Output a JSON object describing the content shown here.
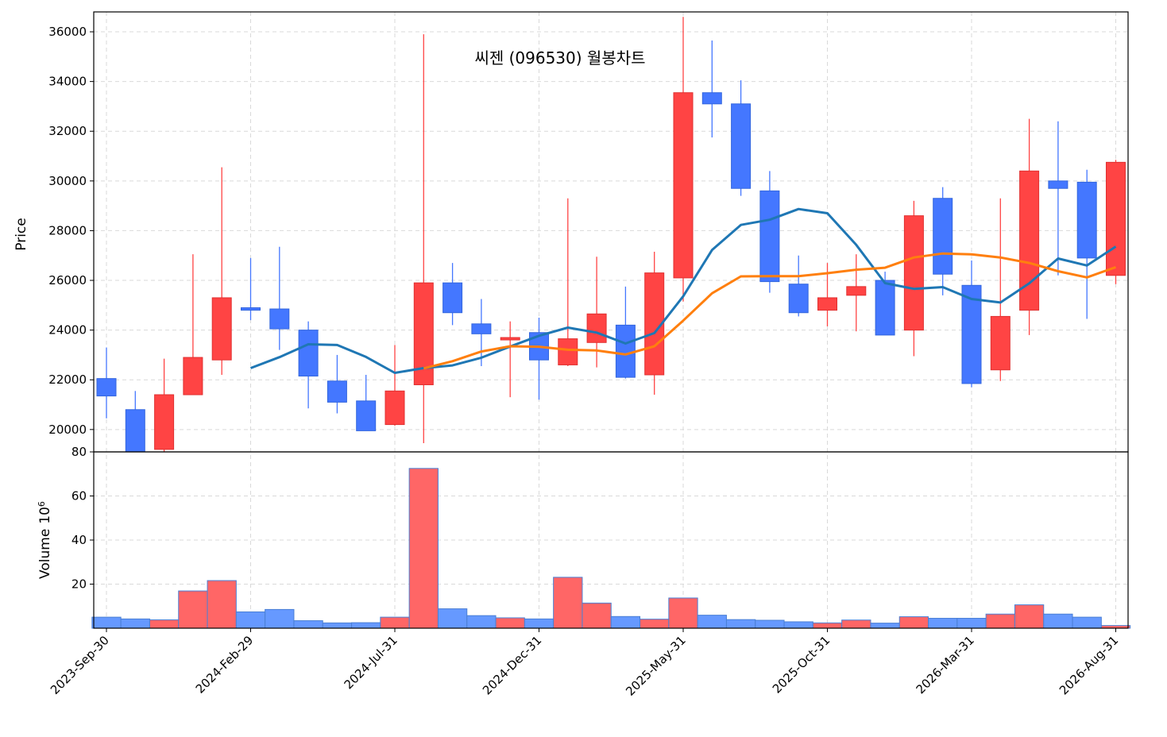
{
  "chart_data": {
    "type": "candlestick",
    "title": "씨젠 (096530) 월봉차트",
    "ylabel": "Price",
    "volume_label": "Volume",
    "volume_exponent": "6",
    "dates": [
      "2023-Sep-30",
      "2023-Oct-31",
      "2023-Nov-30",
      "2023-Dec-31",
      "2024-Jan-31",
      "2024-Feb-29",
      "2024-Mar-31",
      "2024-Apr-30",
      "2024-May-31",
      "2024-Jun-30",
      "2024-Jul-31",
      "2024-Aug-31",
      "2024-Sep-30",
      "2024-Oct-31",
      "2024-Nov-30",
      "2024-Dec-31",
      "2025-Jan-31",
      "2025-Feb-28",
      "2025-Mar-31",
      "2025-Apr-30",
      "2025-May-31",
      "2025-Jun-30",
      "2025-Jul-31",
      "2025-Aug-31",
      "2025-Sep-30",
      "2025-Oct-31",
      "2025-Nov-30",
      "2025-Dec-31",
      "2026-Jan-31",
      "2026-Feb-28",
      "2026-Mar-31",
      "2026-Apr-30",
      "2026-May-31",
      "2026-Jun-30",
      "2026-Jul-31",
      "2026-Aug-31"
    ],
    "open": [
      22050,
      20800,
      19200,
      21400,
      22800,
      24900,
      24850,
      24000,
      21950,
      21150,
      20200,
      21800,
      25900,
      24250,
      23700,
      23900,
      22600,
      23500,
      24200,
      22200,
      26100,
      33550,
      33100,
      29600,
      25850,
      24800,
      25400,
      26000,
      24000,
      29300,
      25800,
      22400,
      24800,
      30000,
      29950,
      26200
    ],
    "high": [
      23300,
      21550,
      22850,
      27050,
      30550,
      26900,
      27350,
      24350,
      23000,
      22200,
      23400,
      35900,
      26700,
      25250,
      24350,
      24500,
      29300,
      26950,
      25750,
      27150,
      36600,
      35650,
      34050,
      30400,
      27000,
      26700,
      27050,
      26350,
      29200,
      29750,
      26800,
      29300,
      32500,
      32400,
      30450,
      30850
    ],
    "low": [
      20450,
      19100,
      19100,
      21400,
      22200,
      24400,
      23200,
      20850,
      20650,
      19950,
      20150,
      19450,
      24200,
      22550,
      21300,
      21200,
      22550,
      22500,
      22050,
      21400,
      25150,
      31750,
      29400,
      25500,
      24550,
      24150,
      23950,
      23800,
      22950,
      25400,
      21700,
      21950,
      23800,
      26200,
      24450,
      25850
    ],
    "close": [
      21350,
      19100,
      21400,
      22900,
      25300,
      24800,
      24050,
      22150,
      21100,
      19950,
      21550,
      25900,
      24700,
      23850,
      23700,
      22800,
      23650,
      24650,
      22100,
      26300,
      33550,
      33100,
      29700,
      25950,
      24700,
      25300,
      25750,
      23800,
      28600,
      26250,
      21850,
      24550,
      30400,
      29700,
      26900,
      30750
    ],
    "volume": [
      5.0,
      4.2,
      3.8,
      16.9,
      21.6,
      7.4,
      8.5,
      3.4,
      2.4,
      2.5,
      5.0,
      72.5,
      8.8,
      5.7,
      4.7,
      4.2,
      23.1,
      11.4,
      5.3,
      4.1,
      13.7,
      5.9,
      3.9,
      3.6,
      2.9,
      2.4,
      3.7,
      2.3,
      5.2,
      4.5,
      4.5,
      6.4,
      10.6,
      6.4,
      5.0,
      1.2
    ],
    "ma_short": [
      null,
      null,
      null,
      null,
      null,
      22470,
      22910,
      23430,
      23400,
      22920,
      22280,
      22470,
      22580,
      22890,
      23340,
      23770,
      24100,
      23900,
      23460,
      23880,
      25360,
      27220,
      28230,
      28440,
      28870,
      28700,
      27430,
      25890,
      25660,
      25730,
      25250,
      25110,
      25880,
      26880,
      26600,
      27360
    ],
    "ma_long": [
      null,
      null,
      null,
      null,
      null,
      null,
      null,
      null,
      null,
      null,
      null,
      22460,
      22750,
      23140,
      23350,
      23330,
      23210,
      23180,
      23020,
      23350,
      24380,
      25480,
      26160,
      26170,
      26170,
      26290,
      26430,
      26510,
      26920,
      27080,
      27050,
      26920,
      26700,
      26370,
      26120,
      26530
    ],
    "x_ticks": [
      "2023-Sep-30",
      "2024-Feb-29",
      "2024-Jul-31",
      "2024-Dec-31",
      "2025-May-31",
      "2025-Oct-31",
      "2026-Mar-31",
      "2026-Aug-31"
    ],
    "x_tick_index": [
      0,
      5,
      10,
      15,
      20,
      25,
      30,
      35
    ],
    "y_ticks": [
      "20000",
      "22000",
      "24000",
      "26000",
      "28000",
      "30000",
      "32000",
      "34000",
      "36000"
    ],
    "price_ylim": [
      19100,
      36800
    ],
    "volume_ticks": [
      "20",
      "40",
      "60",
      "80"
    ],
    "volume_ylim": [
      0,
      80
    ],
    "grid": true,
    "colors": {
      "up": "#ff4444",
      "down": "#4477ff",
      "up_volume": "#ff6666",
      "down_volume": "#6699ff",
      "volume_edge": "#4a7fd4",
      "ma_short": "#1f77b4",
      "ma_long": "#ff7f0e",
      "grid": "#d9d9d9"
    }
  }
}
